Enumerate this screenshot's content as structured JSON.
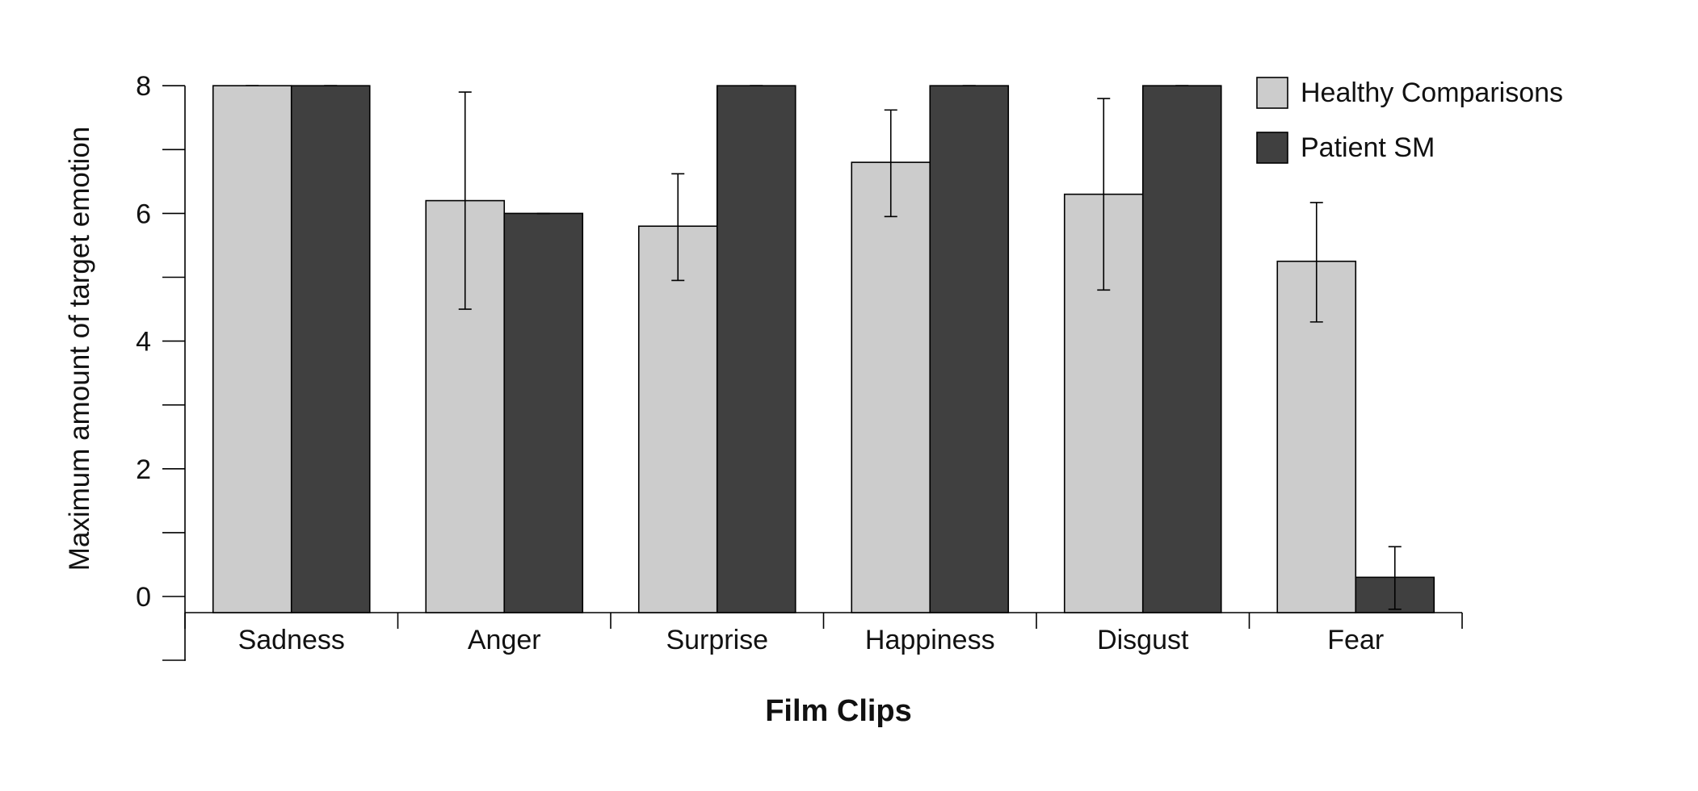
{
  "chart_data": {
    "type": "bar",
    "categories": [
      "Sadness",
      "Anger",
      "Surprise",
      "Happiness",
      "Disgust",
      "Fear"
    ],
    "series": [
      {
        "name": "Healthy Comparisons",
        "color": "#cccccc",
        "values": [
          8.0,
          6.2,
          5.8,
          6.8,
          6.3,
          5.25
        ],
        "error_low": [
          8.0,
          4.5,
          4.95,
          5.95,
          4.8,
          4.3
        ],
        "error_high": [
          8.0,
          7.9,
          6.62,
          7.62,
          7.8,
          6.17
        ]
      },
      {
        "name": "Patient SM",
        "color": "#404040",
        "values": [
          8.0,
          6.0,
          8.0,
          8.0,
          8.0,
          0.3
        ],
        "error_low": [
          8.0,
          6.0,
          8.0,
          8.0,
          8.0,
          -0.2
        ],
        "error_high": [
          8.0,
          6.0,
          8.0,
          8.0,
          8.0,
          0.78
        ]
      }
    ],
    "xlabel": "Film Clips",
    "ylabel": "Maximum amount of target emotion",
    "yticks": [
      "0",
      "2",
      "4",
      "6",
      "8"
    ],
    "ylim": [
      -1,
      8
    ],
    "grid": false,
    "legend_position": "top-right"
  }
}
